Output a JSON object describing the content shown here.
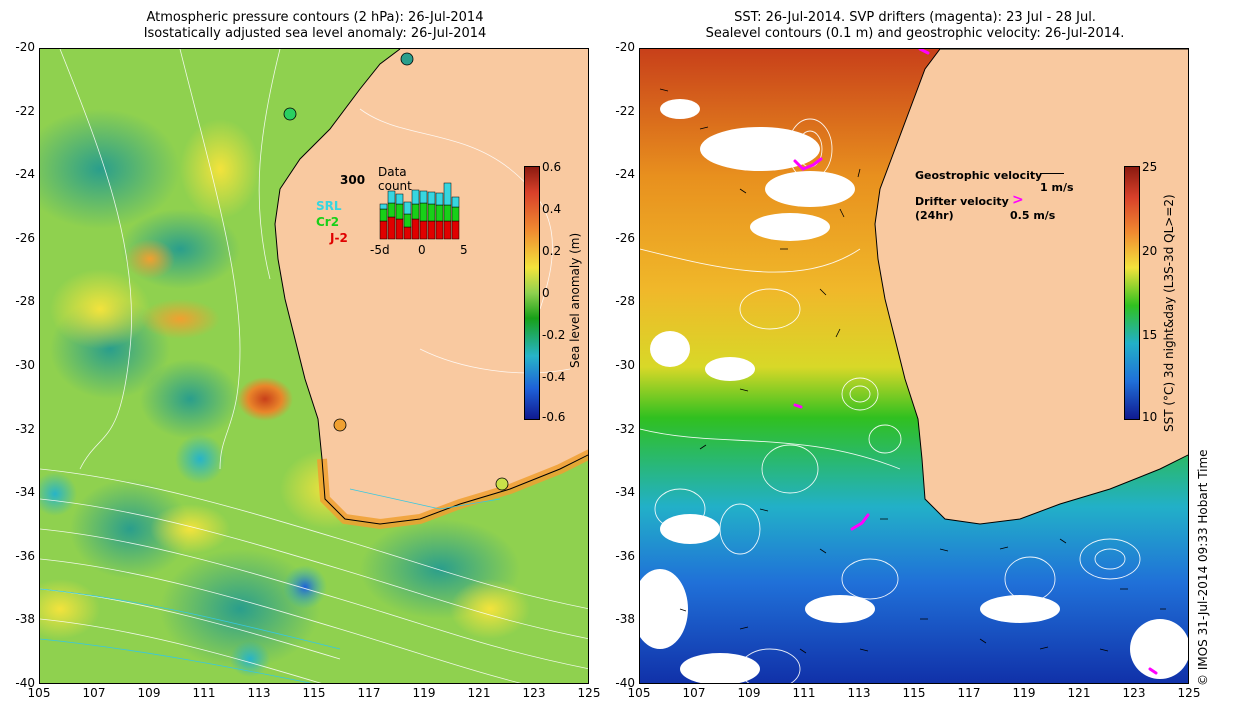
{
  "left": {
    "title_line1": "Atmospheric pressure contours (2 hPa): 26-Jul-2014",
    "title_line2": "Isostatically adjusted sea level anomaly: 26-Jul-2014",
    "colorbar_label": "Sea level anomaly (m)",
    "colorbar_ticks": [
      "0.6",
      "0.4",
      "0.2",
      "0",
      "-0.2",
      "-0.4",
      "-0.6"
    ],
    "inset": {
      "title": "Data count",
      "count_label": "300",
      "legend": [
        "SRL",
        "Cr2",
        "J-2"
      ],
      "x_ticks": [
        "-5d",
        "0",
        "5"
      ],
      "bars": [
        {
          "srl": 5,
          "cr2": 12,
          "j2": 18
        },
        {
          "srl": 12,
          "cr2": 14,
          "j2": 22
        },
        {
          "srl": 10,
          "cr2": 15,
          "j2": 20
        },
        {
          "srl": 12,
          "cr2": 13,
          "j2": 12
        },
        {
          "srl": 14,
          "cr2": 15,
          "j2": 20
        },
        {
          "srl": 12,
          "cr2": 18,
          "j2": 18
        },
        {
          "srl": 12,
          "cr2": 17,
          "j2": 18
        },
        {
          "srl": 12,
          "cr2": 16,
          "j2": 18
        },
        {
          "srl": 22,
          "cr2": 16,
          "j2": 18
        },
        {
          "srl": 10,
          "cr2": 14,
          "j2": 18
        }
      ]
    }
  },
  "right": {
    "title_line1": "SST: 26-Jul-2014. SVP drifters (magenta): 23 Jul - 28 Jul.",
    "title_line2": "Sealevel contours (0.1 m) and geostrophic velocity: 26-Jul-2014.",
    "colorbar_label": "SST (°C) 3d night&day (L3S-3d QL>=2)",
    "colorbar_ticks": [
      "25",
      "20",
      "15",
      "10"
    ],
    "geostrophic_label": "Geostrophic velocity",
    "geostrophic_speed": "1 m/s",
    "drifter_label": "Drifter velocity",
    "drifter_sub": "(24hr)",
    "drifter_speed": "0.5 m/s"
  },
  "axes": {
    "y_ticks": [
      "-20",
      "-22",
      "-24",
      "-26",
      "-28",
      "-30",
      "-32",
      "-34",
      "-36",
      "-38",
      "-40"
    ],
    "x_ticks": [
      "105",
      "107",
      "109",
      "111",
      "113",
      "115",
      "117",
      "119",
      "121",
      "123",
      "125"
    ]
  },
  "credit": "© IMOS 31-Jul-2014 09:33 Hobart Time",
  "colors": {
    "land": "#f9c9a0",
    "sla_mid": "#8fd14f",
    "sst_warm": "#e8901e",
    "magenta": "#ff00ff"
  }
}
